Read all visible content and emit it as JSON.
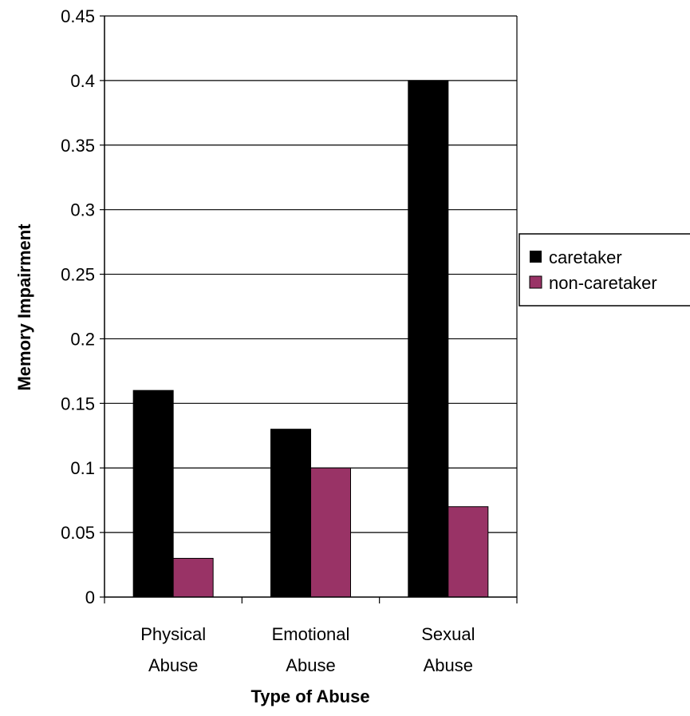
{
  "chart_data": {
    "type": "bar",
    "title": "",
    "xlabel": "Type of Abuse",
    "ylabel": "Memory Impairment",
    "categories": [
      [
        "Physical",
        "Abuse"
      ],
      [
        "Emotional",
        "Abuse"
      ],
      [
        "Sexual",
        "Abuse"
      ]
    ],
    "series": [
      {
        "name": "caretaker",
        "values": [
          0.16,
          0.13,
          0.4
        ],
        "color": "#000000"
      },
      {
        "name": "non-caretaker",
        "values": [
          0.03,
          0.1,
          0.07
        ],
        "color": "#993366"
      }
    ],
    "ylim": [
      0,
      0.45
    ],
    "yticks": [
      "0",
      "0.05",
      "0.1",
      "0.15",
      "0.2",
      "0.25",
      "0.3",
      "0.35",
      "0.4",
      "0.45"
    ],
    "grid": true,
    "legend_position": "right"
  }
}
